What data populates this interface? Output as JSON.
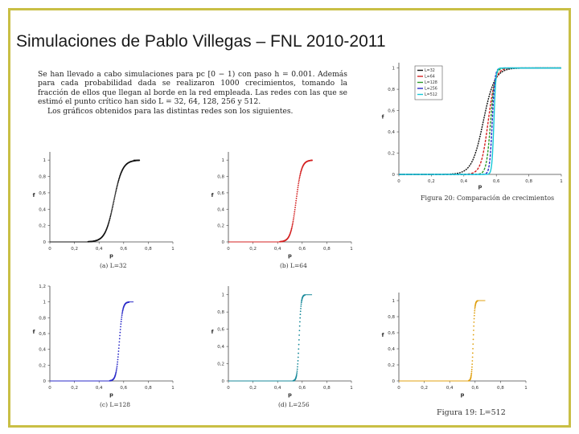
{
  "slide": {
    "title": "Simulaciones de Pablo Villegas – FNL 2010-2011",
    "intro_1": "Se han llevado a cabo simulaciones para pc [0 − 1) con paso h = 0.001. Además para cada probabilidad dada se realizaron 1000 crecimientos, tomando la fracción de ellos que llegan al borde en la red empleada. Las redes con las que se estimó el punto crítico han sido L = 32, 64, 128, 256 y 512.",
    "intro_2": "Los gráficos obtenidos para las distintas redes son los siguientes.",
    "fig19_caption": "Figura 19: L=512",
    "fig20_caption": "Figura 20: Comparación de crecimientos"
  },
  "chart_data": [
    {
      "type": "scatter",
      "id": "L32",
      "caption": "(a) L=32",
      "xlabel": "p",
      "ylabel": "f",
      "xlim": [
        0,
        1
      ],
      "ylim": [
        0,
        1.1
      ],
      "xticks": [
        "0",
        "0,2",
        "0,4",
        "0,6",
        "0,8",
        "1"
      ],
      "yticks": [
        "0",
        "0,2",
        "0,4",
        "0,6",
        "0,8",
        "1"
      ],
      "color": "#111111",
      "pc": 0.52,
      "width": 0.035,
      "x_end": 0.68,
      "step": 0.008,
      "grid": false
    },
    {
      "type": "scatter",
      "id": "L64",
      "caption": "(b) L=64",
      "xlabel": "p",
      "ylabel": "f",
      "xlim": [
        0,
        1
      ],
      "ylim": [
        0,
        1.1
      ],
      "xticks": [
        "0",
        "0,2",
        "0,4",
        "0,6",
        "0,8",
        "1"
      ],
      "yticks": [
        "0",
        "0,2",
        "0,4",
        "0,6",
        "0,8",
        "1"
      ],
      "color": "#d42020",
      "pc": 0.55,
      "width": 0.022,
      "x_end": 0.68,
      "step": 0.007,
      "grid": false
    },
    {
      "type": "scatter",
      "id": "L128",
      "caption": "(c) L=128",
      "xlabel": "p",
      "ylabel": "f",
      "xlim": [
        0,
        1
      ],
      "ylim": [
        0,
        1.2
      ],
      "xticks": [
        "0",
        "0,2",
        "0,4",
        "0,6",
        "0,8",
        "1"
      ],
      "yticks": [
        "0",
        "0,2",
        "0,4",
        "0,6",
        "0,8",
        "1",
        "1,2"
      ],
      "color": "#2a2ac8",
      "pc": 0.565,
      "width": 0.013,
      "x_end": 0.68,
      "step": 0.006,
      "grid": false
    },
    {
      "type": "scatter",
      "id": "L256",
      "caption": "(d) L=256",
      "xlabel": "p",
      "ylabel": "f",
      "xlim": [
        0,
        1
      ],
      "ylim": [
        0,
        1.1
      ],
      "xticks": [
        "0",
        "0,2",
        "0,4",
        "0,6",
        "0,8",
        "1"
      ],
      "yticks": [
        "0",
        "0,2",
        "0,4",
        "0,6",
        "0,8",
        "1"
      ],
      "color": "#17899a",
      "pc": 0.575,
      "width": 0.008,
      "x_end": 0.68,
      "step": 0.005,
      "grid": false
    },
    {
      "type": "scatter",
      "id": "L512",
      "caption": "",
      "xlabel": "p",
      "ylabel": "f",
      "xlim": [
        0,
        1
      ],
      "ylim": [
        0,
        1.1
      ],
      "xticks": [
        "0",
        "0,2",
        "0,4",
        "0,6",
        "0,8",
        "1"
      ],
      "yticks": [
        "0",
        "0,2",
        "0,4",
        "0,6",
        "0,8",
        "1"
      ],
      "color": "#e0a010",
      "pc": 0.585,
      "width": 0.006,
      "x_end": 0.68,
      "step": 0.004,
      "grid": false
    },
    {
      "type": "line",
      "id": "comparison",
      "caption": "",
      "xlabel": "p",
      "ylabel": "f",
      "xlim": [
        0,
        1
      ],
      "ylim": [
        0,
        1.05
      ],
      "xticks": [
        "0",
        "0,2",
        "0,4",
        "0,6",
        "0,8",
        "1"
      ],
      "yticks": [
        "0",
        "0,2",
        "0,4",
        "0,6",
        "0,8",
        "1"
      ],
      "legend_position": "top-left",
      "series": [
        {
          "name": "L=32",
          "color": "#111111",
          "pc": 0.52,
          "width": 0.035
        },
        {
          "name": "L=64",
          "color": "#d42020",
          "pc": 0.55,
          "width": 0.022
        },
        {
          "name": "L=128",
          "color": "#2a9a2a",
          "pc": 0.565,
          "width": 0.013
        },
        {
          "name": "L=256",
          "color": "#2a2ac8",
          "pc": 0.575,
          "width": 0.008
        },
        {
          "name": "L=512",
          "color": "#17c8d8",
          "pc": 0.585,
          "width": 0.006
        }
      ]
    }
  ]
}
